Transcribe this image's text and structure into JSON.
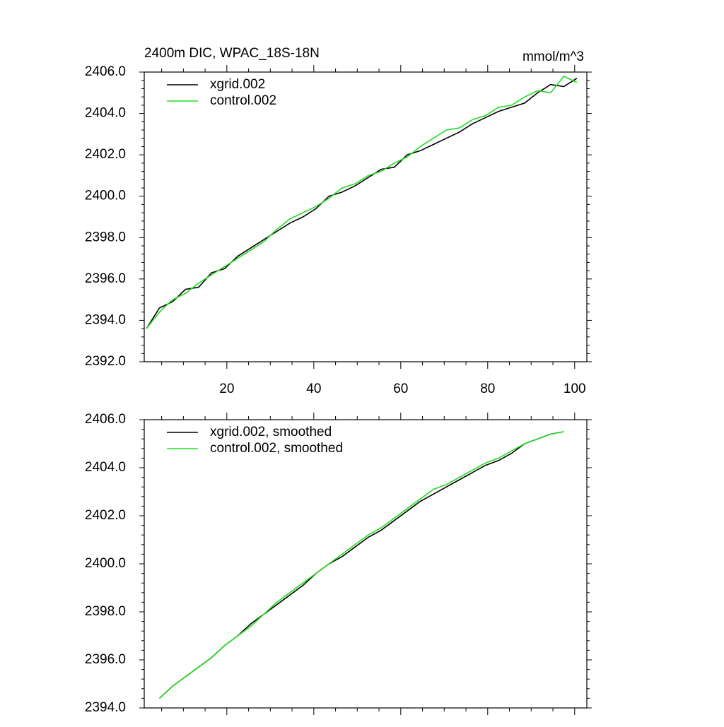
{
  "chart_data": [
    {
      "type": "line",
      "title": "2400m DIC, WPAC_18S-18N",
      "subtitle": "mmol/m^3",
      "x": [
        1.5,
        4.5,
        7.5,
        10.5,
        13.5,
        16.5,
        19.5,
        22.5,
        25.5,
        28.5,
        31.5,
        34.5,
        37.5,
        40.5,
        43.5,
        46.5,
        49.5,
        52.5,
        55.5,
        58.5,
        61.5,
        64.5,
        67.5,
        70.5,
        73.5,
        76.5,
        79.5,
        82.5,
        85.5,
        88.5,
        91.5,
        94.5,
        97.5,
        100.5
      ],
      "series": [
        {
          "name": "xgrid.002",
          "color": "#000000",
          "values": [
            2393.6,
            2394.6,
            2394.9,
            2395.5,
            2395.6,
            2396.3,
            2396.5,
            2397.1,
            2397.5,
            2397.9,
            2398.3,
            2398.7,
            2399.0,
            2399.4,
            2400.0,
            2400.2,
            2400.5,
            2400.9,
            2401.3,
            2401.4,
            2402.0,
            2402.2,
            2402.5,
            2402.8,
            2403.1,
            2403.5,
            2403.8,
            2404.1,
            2404.3,
            2404.5,
            2405.0,
            2405.4,
            2405.3,
            2405.7
          ]
        },
        {
          "name": "control.002",
          "color": "#22dd22",
          "values": [
            2393.6,
            2394.4,
            2395.0,
            2395.3,
            2395.8,
            2396.2,
            2396.6,
            2397.0,
            2397.4,
            2397.8,
            2398.4,
            2398.9,
            2399.2,
            2399.5,
            2399.9,
            2400.4,
            2400.6,
            2401.0,
            2401.2,
            2401.6,
            2401.9,
            2402.4,
            2402.8,
            2403.2,
            2403.3,
            2403.7,
            2403.9,
            2404.3,
            2404.4,
            2404.8,
            2405.1,
            2405.0,
            2405.8,
            2405.5
          ]
        }
      ],
      "xlim": [
        1,
        102.8
      ],
      "xticks": [
        20,
        40,
        60,
        80,
        100
      ],
      "ylim": [
        2392,
        2406
      ],
      "yticks": [
        {
          "value": 2392,
          "label": "2392.0"
        },
        {
          "value": 2394,
          "label": "2394.0"
        },
        {
          "value": 2396,
          "label": "2396.0"
        },
        {
          "value": 2398,
          "label": "2398.0"
        },
        {
          "value": 2400,
          "label": "2400.0"
        },
        {
          "value": 2402,
          "label": "2402.0"
        },
        {
          "value": 2404,
          "label": "2404.0"
        },
        {
          "value": 2406,
          "label": "2406.0"
        }
      ],
      "legend": "top-left"
    },
    {
      "type": "line",
      "x": [
        4.5,
        7.5,
        10.5,
        13.5,
        16.5,
        19.5,
        22.5,
        25.5,
        28.5,
        31.5,
        34.5,
        37.5,
        40.5,
        43.5,
        46.5,
        49.5,
        52.5,
        55.5,
        58.5,
        61.5,
        64.5,
        67.5,
        70.5,
        73.5,
        76.5,
        79.5,
        82.5,
        85.5,
        88.5,
        91.5,
        94.5,
        97.5
      ],
      "series": [
        {
          "name": "xgrid.002, smoothed",
          "color": "#000000",
          "values": [
            2394.4,
            2394.9,
            2395.3,
            2395.7,
            2396.1,
            2396.6,
            2397.0,
            2397.5,
            2397.9,
            2398.3,
            2398.7,
            2399.1,
            2399.6,
            2400.0,
            2400.3,
            2400.7,
            2401.1,
            2401.4,
            2401.8,
            2402.2,
            2402.6,
            2402.9,
            2403.2,
            2403.5,
            2403.8,
            2404.1,
            2404.3,
            2404.6,
            2405.0,
            2405.2,
            2405.4,
            2405.5
          ]
        },
        {
          "name": "control.002, smoothed",
          "color": "#22dd22",
          "values": [
            2394.4,
            2394.9,
            2395.3,
            2395.7,
            2396.1,
            2396.6,
            2397.0,
            2397.4,
            2397.9,
            2398.4,
            2398.8,
            2399.2,
            2399.6,
            2400.0,
            2400.4,
            2400.8,
            2401.2,
            2401.5,
            2401.9,
            2402.3,
            2402.7,
            2403.1,
            2403.3,
            2403.6,
            2403.9,
            2404.2,
            2404.4,
            2404.7,
            2405.0,
            2405.2,
            2405.4,
            2405.5
          ]
        }
      ],
      "xlim": [
        1,
        102.8
      ],
      "xticks": [
        20,
        40,
        60,
        80,
        100
      ],
      "ylim": [
        2394,
        2406
      ],
      "yticks": [
        {
          "value": 2394,
          "label": "2394.0"
        },
        {
          "value": 2396,
          "label": "2396.0"
        },
        {
          "value": 2398,
          "label": "2398.0"
        },
        {
          "value": 2400,
          "label": "2400.0"
        },
        {
          "value": 2402,
          "label": "2402.0"
        },
        {
          "value": 2404,
          "label": "2404.0"
        },
        {
          "value": 2406,
          "label": "2406.0"
        }
      ],
      "legend": "top-left"
    }
  ]
}
